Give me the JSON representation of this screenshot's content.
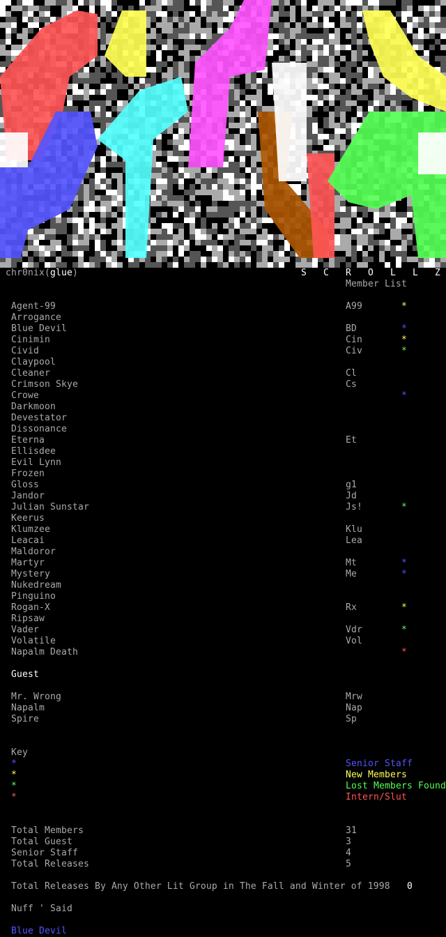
{
  "header": {
    "author": "chr0nix",
    "group": "glue",
    "title_letters": [
      "S",
      "C",
      "R",
      "O",
      "L",
      "L",
      "Z"
    ],
    "subtitle": "Member List"
  },
  "colors": {
    "text": "#aaaaaa",
    "bright": "#ffffff",
    "senior_staff": "#5555ff",
    "new_members": "#ffff55",
    "lost_members_found": "#55ff55",
    "intern": "#ff5555"
  },
  "members": [
    {
      "name": "Agent-99",
      "handle": "A99",
      "mark": "new_members"
    },
    {
      "name": "Arrogance",
      "handle": "",
      "mark": ""
    },
    {
      "name": "Blue Devil",
      "handle": "BD",
      "mark": "senior_staff"
    },
    {
      "name": "Cinimin",
      "handle": "Cin",
      "mark": "new_members"
    },
    {
      "name": "Civid",
      "handle": "Civ",
      "mark": "lost_members_found"
    },
    {
      "name": "Claypool",
      "handle": "",
      "mark": ""
    },
    {
      "name": "Cleaner",
      "handle": "Cl",
      "mark": ""
    },
    {
      "name": "Crimson Skye",
      "handle": "Cs",
      "mark": ""
    },
    {
      "name": "Crowe",
      "handle": "",
      "mark": "senior_staff"
    },
    {
      "name": "Darkmoon",
      "handle": "",
      "mark": ""
    },
    {
      "name": "Devestator",
      "handle": "",
      "mark": ""
    },
    {
      "name": "Dissonance",
      "handle": "",
      "mark": ""
    },
    {
      "name": "Eterna",
      "handle": "Et",
      "mark": ""
    },
    {
      "name": "Ellisdee",
      "handle": "",
      "mark": ""
    },
    {
      "name": "Evil Lynn",
      "handle": "",
      "mark": ""
    },
    {
      "name": "Frozen",
      "handle": "",
      "mark": ""
    },
    {
      "name": "Gloss",
      "handle": "g1",
      "mark": ""
    },
    {
      "name": "Jandor",
      "handle": "Jd",
      "mark": ""
    },
    {
      "name": "Julian Sunstar",
      "handle": "Js!",
      "mark": "lost_members_found"
    },
    {
      "name": "Keerus",
      "handle": "",
      "mark": ""
    },
    {
      "name": "Klumzee",
      "handle": "Klu",
      "mark": ""
    },
    {
      "name": "Leacai",
      "handle": "Lea",
      "mark": ""
    },
    {
      "name": "Maldoror",
      "handle": "",
      "mark": ""
    },
    {
      "name": "Martyr",
      "handle": "Mt",
      "mark": "senior_staff"
    },
    {
      "name": "Mystery",
      "handle": "Me",
      "mark": "senior_staff"
    },
    {
      "name": "Nukedream",
      "handle": "",
      "mark": ""
    },
    {
      "name": "Pinguino",
      "handle": "",
      "mark": ""
    },
    {
      "name": "Rogan-X",
      "handle": "Rx",
      "mark": "new_members"
    },
    {
      "name": "Ripsaw",
      "handle": "",
      "mark": ""
    },
    {
      "name": "Vader",
      "handle": "Vdr",
      "mark": "lost_members_found"
    },
    {
      "name": "Volatile",
      "handle": "Vol",
      "mark": ""
    },
    {
      "name": "Napalm Death",
      "handle": "",
      "mark": "intern"
    }
  ],
  "guest_heading": "Guest",
  "guests": [
    {
      "name": "Mr. Wrong",
      "handle": "Mrw"
    },
    {
      "name": "Napalm",
      "handle": "Nap"
    },
    {
      "name": "Spire",
      "handle": "Sp"
    }
  ],
  "key": {
    "heading": "Key",
    "star": "*",
    "items": [
      {
        "mark": "senior_staff",
        "label": "Senior Staff"
      },
      {
        "mark": "new_members",
        "label": "New Members"
      },
      {
        "mark": "lost_members_found",
        "label": "Lost Members Found"
      },
      {
        "mark": "intern",
        "label": "Intern/Slut"
      }
    ]
  },
  "totals": [
    {
      "label": "Total Members",
      "value": "31"
    },
    {
      "label": "Total Guest",
      "value": "3"
    },
    {
      "label": "Senior Staff",
      "value": "4"
    },
    {
      "label": "Total Releases",
      "value": "5"
    }
  ],
  "other_groups": {
    "label": "Total Releases By Any Other Lit Group in The Fall and Winter of 1998",
    "value": "0"
  },
  "closing": "Nuff ' Said",
  "signature": "Blue Devil"
}
